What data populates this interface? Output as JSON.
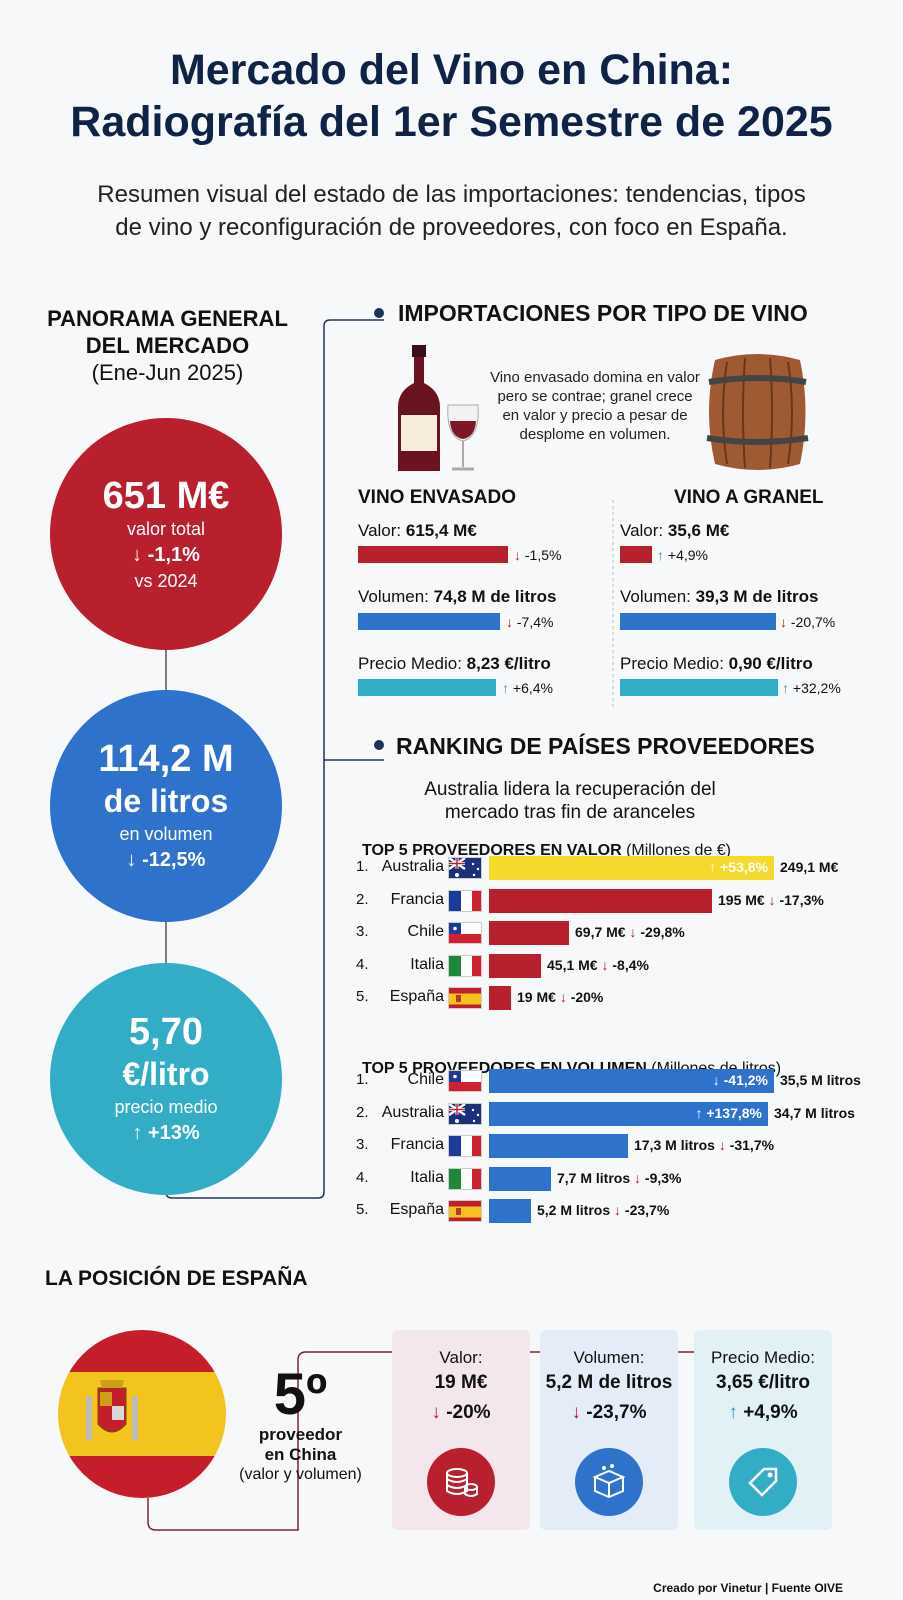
{
  "header": {
    "title_line1": "Mercado del Vino en China:",
    "title_line2": "Radiografía del 1er Semestre de 2025",
    "subtitle_line1": "Resumen visual del estado de las importaciones: tendencias, tipos",
    "subtitle_line2": "de vino y reconfiguración de proveedores, con foco en España."
  },
  "panorama": {
    "title_line1": "PANORAMA GENERAL",
    "title_line2": "DEL MERCADO",
    "period": "(Ene-Jun 2025)",
    "value": {
      "big": "651 M€",
      "label": "valor total",
      "change": "-1,1%",
      "vs": "vs 2024"
    },
    "volume": {
      "big1": "114,2 M",
      "big2": "de litros",
      "label": "en volumen",
      "change": "-12,5%"
    },
    "price": {
      "big1": "5,70",
      "big2": "€/litro",
      "label": "precio medio",
      "change": "+13%"
    }
  },
  "wine_types": {
    "title": "IMPORTACIONES POR TIPO DE VINO",
    "note": "Vino envasado domina en valor pero se contrae; granel crece en valor y precio a pesar de desplome en volumen.",
    "bottled": {
      "heading": "VINO ENVASADO",
      "valor_label": "Valor:",
      "valor": "615,4 M€",
      "valor_change": "-1,5%",
      "volumen_label": "Volumen:",
      "volumen": "74,8 M de litros",
      "volumen_change": "-7,4%",
      "precio_label": "Precio Medio:",
      "precio": "8,23 €/litro",
      "precio_change": "+6,4%"
    },
    "bulk": {
      "heading": "VINO A GRANEL",
      "valor_label": "Valor:",
      "valor": "35,6 M€",
      "valor_change": "+4,9%",
      "volumen_label": "Volumen:",
      "volumen": "39,3 M de litros",
      "volumen_change": "-20,7%",
      "precio_label": "Precio Medio:",
      "precio": "0,90 €/litro",
      "precio_change": "+32,2%"
    }
  },
  "ranking": {
    "title": "RANKING DE PAÍSES PROVEEDORES",
    "sub_line1": "Australia lidera la recuperación del",
    "sub_line2": "mercado tras fin de aranceles",
    "value_heading": "TOP 5 PROVEEDORES EN VALOR",
    "value_unit": "(Millones de €)",
    "volume_heading": "TOP 5 PROVEEDORES EN VOLUMEN",
    "volume_unit": "(Millones de litros)"
  },
  "spain": {
    "title": "LA POSICIÓN DE ESPAÑA",
    "rank": "5º",
    "rank_label1": "proveedor",
    "rank_label2": "en China",
    "rank_label3": "(valor y volumen)",
    "cards": [
      {
        "label": "Valor:",
        "value": "19 M€",
        "change": "-20%"
      },
      {
        "label": "Volumen:",
        "value": "5,2 M de litros",
        "change": "-23,7%"
      },
      {
        "label": "Precio Medio:",
        "value": "3,65 €/litro",
        "change": "+4,9%"
      }
    ]
  },
  "footer": "Creado por Vinetur | Fuente OIVE",
  "colors": {
    "red": "#b8202e",
    "blue": "#2e72cc",
    "teal": "#33adc6",
    "yellow": "#f5da2c",
    "navy": "#0f2347"
  },
  "chart_data": [
    {
      "type": "bar",
      "title": "TOP 5 PROVEEDORES EN VALOR (Millones de €)",
      "categories": [
        "Australia",
        "Francia",
        "Chile",
        "Italia",
        "España"
      ],
      "values": [
        249.1,
        195,
        69.7,
        45.1,
        19
      ],
      "value_labels": [
        "249,1 M€",
        "195 M€",
        "69,7 M€",
        "45,1 M€",
        "19 M€"
      ],
      "changes": [
        "+53,8%",
        "-17,3%",
        "-29,8%",
        "-8,4%",
        "-20%"
      ],
      "ranks": [
        "1.",
        "2.",
        "3.",
        "4.",
        "5."
      ]
    },
    {
      "type": "bar",
      "title": "TOP 5 PROVEEDORES EN VOLUMEN (Millones de litros)",
      "categories": [
        "Chile",
        "Australia",
        "Francia",
        "Italia",
        "España"
      ],
      "values": [
        35.5,
        34.7,
        17.3,
        7.7,
        5.2
      ],
      "value_labels": [
        "35,5 M litros",
        "34,7 M litros",
        "17,3 M litros",
        "7,7 M litros",
        "5,2 M litros"
      ],
      "changes": [
        "-41,2%",
        "+137,8%",
        "-31,7%",
        "-9,3%",
        "-23,7%"
      ],
      "ranks": [
        "1.",
        "2. ",
        "3.",
        "4.",
        "5."
      ]
    }
  ]
}
